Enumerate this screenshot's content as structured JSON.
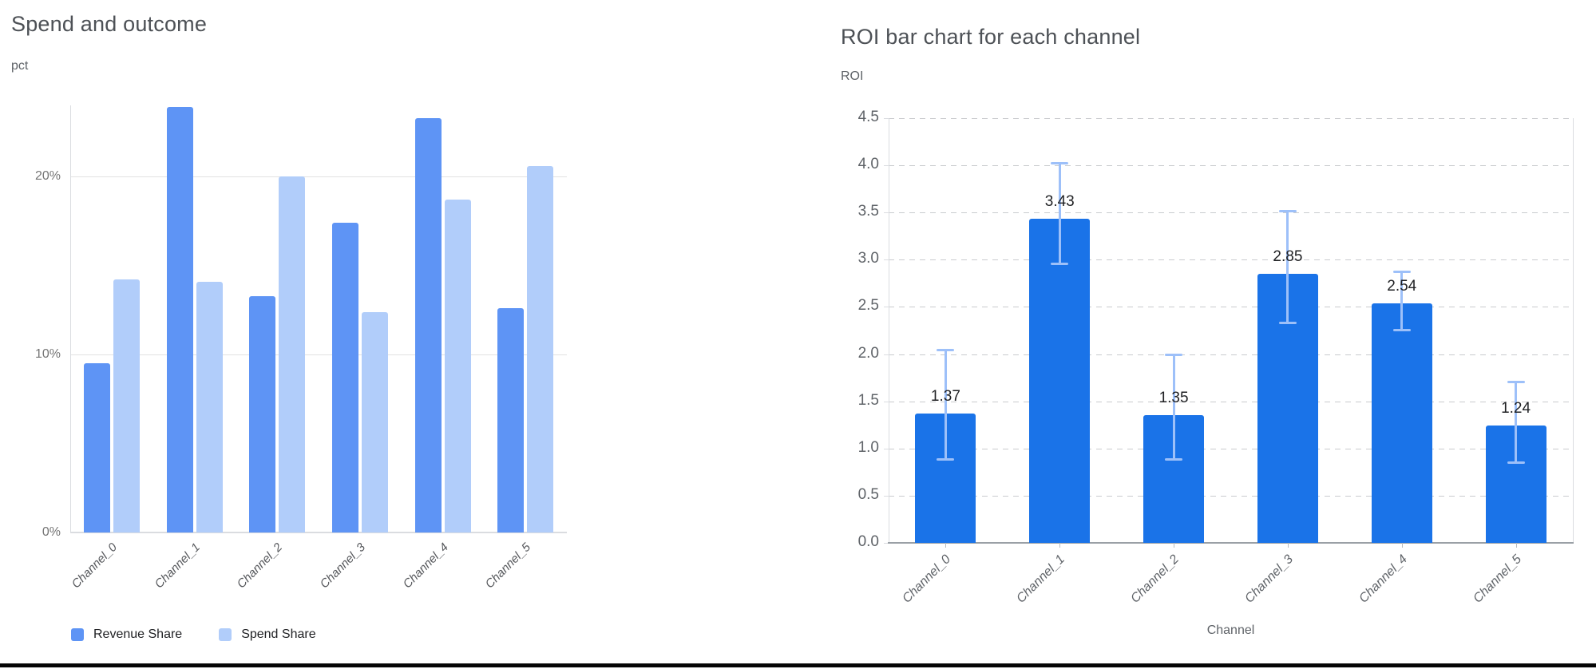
{
  "colors": {
    "revenue_bar": "#5e94f5",
    "spend_bar": "#b1cdfa",
    "roi_bar": "#1a73e8",
    "error_bar": "#9dc0f9",
    "title_text": "#4d5156",
    "tick_text": "#757575",
    "axis_text": "#5f6368",
    "value_label_text": "#1f2023",
    "solid_grid": "#e2e2e2",
    "dashed_grid": "#c9cbce",
    "bottom_rule": "#050505"
  },
  "chart_data": [
    {
      "type": "bar",
      "title": "Spend and outcome",
      "ylabel": "pct",
      "xlabel": "",
      "categories": [
        "Channel_0",
        "Channel_1",
        "Channel_2",
        "Channel_3",
        "Channel_4",
        "Channel_5"
      ],
      "series": [
        {
          "name": "Revenue Share",
          "color": "#5e94f5",
          "values": [
            9.5,
            23.9,
            13.3,
            17.4,
            23.3,
            12.6
          ]
        },
        {
          "name": "Spend Share",
          "color": "#b1cdfa",
          "values": [
            14.2,
            14.1,
            20.0,
            12.4,
            18.7,
            20.6
          ]
        }
      ],
      "ylim": [
        0,
        24
      ],
      "yticks": [
        {
          "value": 0,
          "label": "0%"
        },
        {
          "value": 10,
          "label": "10%"
        },
        {
          "value": 20,
          "label": "20%"
        }
      ],
      "grid": "solid",
      "legend_position": "bottom"
    },
    {
      "type": "bar",
      "title": "ROI bar chart for each channel",
      "ylabel": "ROI",
      "xlabel": "Channel",
      "categories": [
        "Channel_0",
        "Channel_1",
        "Channel_2",
        "Channel_3",
        "Channel_4",
        "Channel_5"
      ],
      "values": [
        1.37,
        3.43,
        1.35,
        2.85,
        2.54,
        1.24
      ],
      "bar_labels": [
        "1.37",
        "3.43",
        "1.35",
        "2.85",
        "2.54",
        "1.24"
      ],
      "error_low": [
        0.88,
        2.95,
        0.88,
        2.33,
        2.25,
        0.85
      ],
      "error_high": [
        2.05,
        4.03,
        2.0,
        3.52,
        2.88,
        1.71
      ],
      "bar_color": "#1a73e8",
      "error_color": "#9dc0f9",
      "ylim": [
        0,
        4.5
      ],
      "ytick_step": 0.5,
      "ytick_labels": [
        "0.0",
        "0.5",
        "1.0",
        "1.5",
        "2.0",
        "2.5",
        "3.0",
        "3.5",
        "4.0",
        "4.5"
      ],
      "grid": "dashed",
      "legend_position": "none"
    }
  ]
}
